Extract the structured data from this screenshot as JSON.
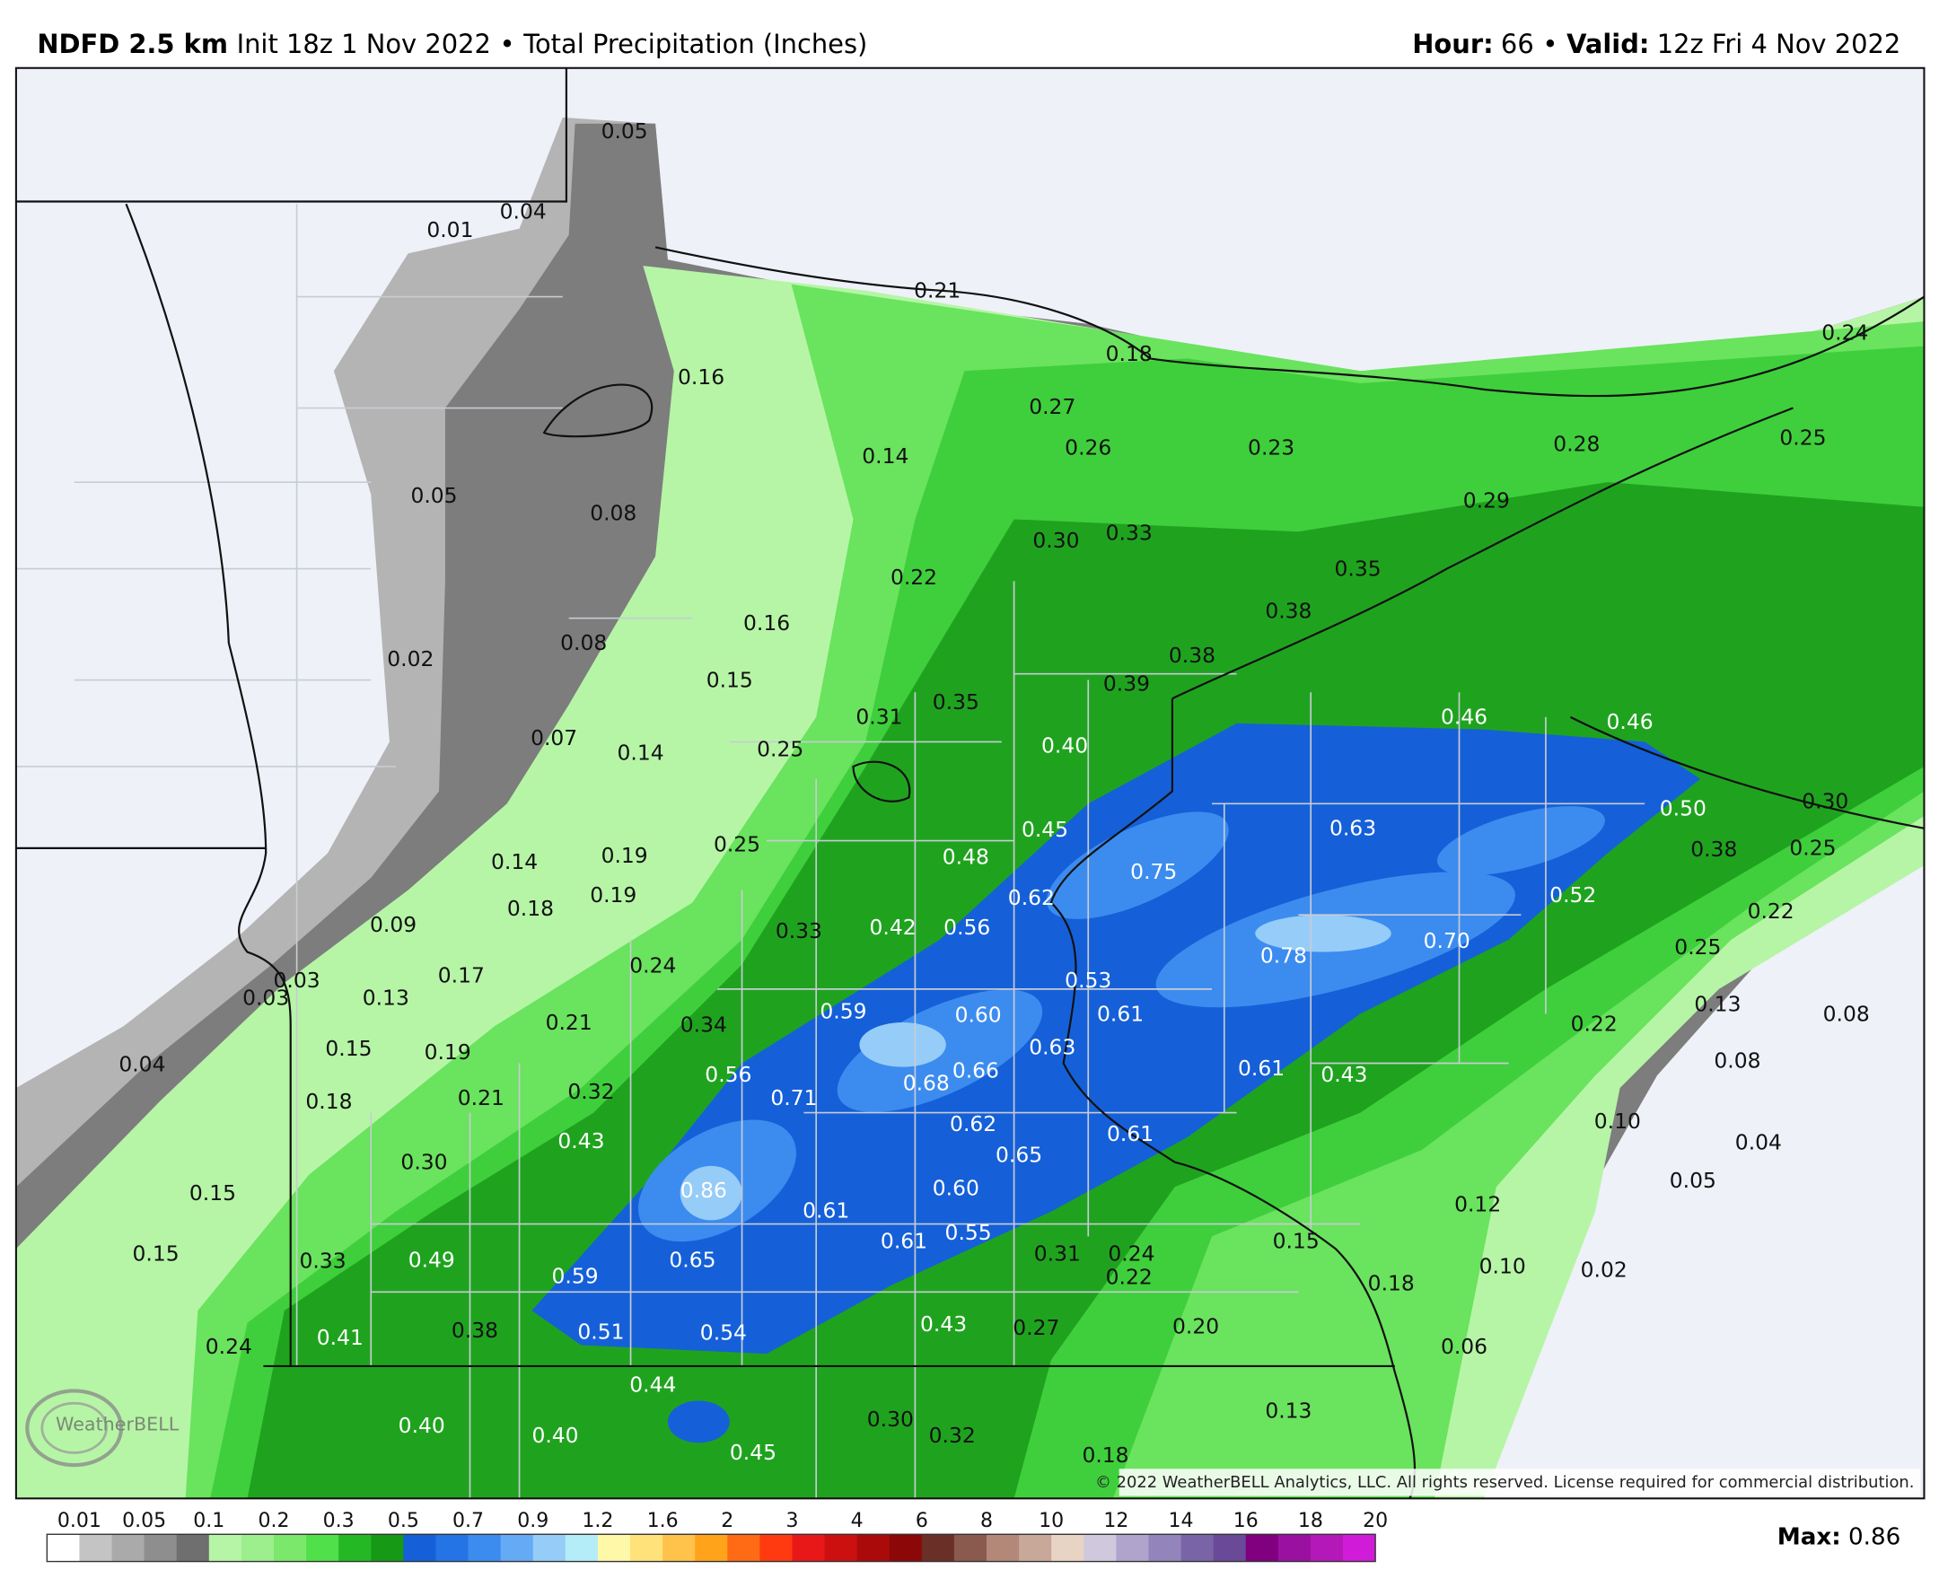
{
  "header": {
    "model": "NDFD 2.5 km",
    "init": "Init 18z 1 Nov 2022",
    "separator": "•",
    "field": "Total Precipitation (Inches)",
    "hour_label": "Hour:",
    "hour": "66",
    "valid_label": "Valid:",
    "valid": "12z Fri 4 Nov 2022"
  },
  "map": {
    "labels": [
      "0.05",
      "0.04",
      "0.01",
      "0.21",
      "0.18",
      "0.24",
      "0.16",
      "0.27",
      "0.26",
      "0.23",
      "0.28",
      "0.25",
      "0.14",
      "0.05",
      "0.08",
      "0.29",
      "0.30",
      "0.33",
      "0.35",
      "0.22",
      "0.38",
      "0.16",
      "0.08",
      "0.02",
      "0.38",
      "0.15",
      "0.39",
      "0.35",
      "0.31",
      "0.46",
      "0.46",
      "0.07",
      "0.14",
      "0.25",
      "0.40",
      "0.30",
      "0.50",
      "0.45",
      "0.63",
      "0.25",
      "0.48",
      "0.38",
      "0.25",
      "0.14",
      "0.19",
      "0.75",
      "0.62",
      "0.52",
      "0.19",
      "0.18",
      "0.22",
      "0.09",
      "0.42",
      "0.56",
      "0.33",
      "0.70",
      "0.78",
      "0.25",
      "0.24",
      "0.03",
      "0.17",
      "0.53",
      "0.13",
      "0.03",
      "0.13",
      "0.08",
      "0.59",
      "0.60",
      "0.61",
      "0.22",
      "0.21",
      "0.34",
      "0.15",
      "0.19",
      "0.63",
      "0.08",
      "0.04",
      "0.66",
      "0.61",
      "0.43",
      "0.56",
      "0.68",
      "0.71",
      "0.21",
      "0.32",
      "0.18",
      "0.62",
      "0.61",
      "0.10",
      "0.43",
      "0.04",
      "0.65",
      "0.30",
      "0.05",
      "0.15",
      "0.86",
      "0.60",
      "0.61",
      "0.12",
      "0.15",
      "0.55",
      "0.61",
      "0.31",
      "0.24",
      "0.22",
      "0.15",
      "0.33",
      "0.49",
      "0.65",
      "0.10",
      "0.02",
      "0.59",
      "0.18",
      "0.43",
      "0.27",
      "0.20",
      "0.51",
      "0.54",
      "0.41",
      "0.38",
      "0.24",
      "0.06",
      "0.44",
      "0.13",
      "0.30",
      "0.40",
      "0.32",
      "0.40",
      "0.45",
      "0.18"
    ],
    "logo": "WeatherBELL",
    "copyright": "© 2022 WeatherBELL Analytics, LLC. All rights reserved. License required for commercial distribution."
  },
  "legend": {
    "ticks": [
      "0.01",
      "0.05",
      "0.1",
      "0.2",
      "0.3",
      "0.5",
      "0.7",
      "0.9",
      "1.2",
      "1.6",
      "2",
      "3",
      "4",
      "6",
      "8",
      "10",
      "12",
      "14",
      "16",
      "18",
      "20"
    ],
    "colors": [
      "#ffffff",
      "#c4c4c4",
      "#aaaaaa",
      "#8e8e8e",
      "#6f6f6f",
      "#b6f5a6",
      "#9cef8c",
      "#7be86b",
      "#50e04a",
      "#25b825",
      "#169a16",
      "#1560d8",
      "#2474e6",
      "#3c8cf0",
      "#64aaf4",
      "#96ccf8",
      "#b4ecf8",
      "#fff8a8",
      "#ffe27a",
      "#ffc24a",
      "#ffa41a",
      "#ff6a14",
      "#ff3a10",
      "#e81818",
      "#cc1010",
      "#aa0a0a",
      "#8c0808",
      "#6a3028",
      "#8a5a4e",
      "#b48878",
      "#c8a898",
      "#e8d4c4",
      "#d0c8dc",
      "#b0a4cc",
      "#9484bc",
      "#7a64a8",
      "#6a4a98",
      "#800080",
      "#9a10a0",
      "#b418b8",
      "#d01cd8"
    ],
    "max_label": "Max:",
    "max": "0.86"
  }
}
